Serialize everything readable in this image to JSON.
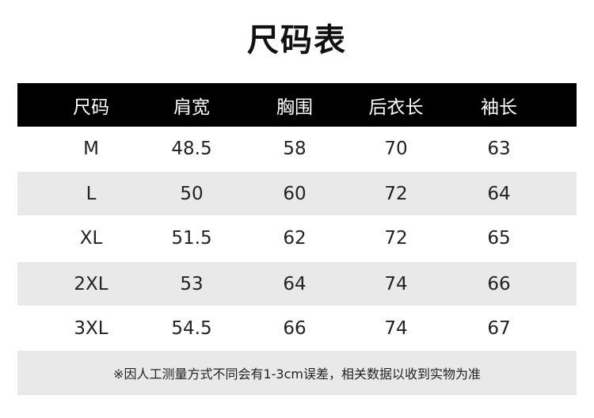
{
  "title": "尺码表",
  "headers": [
    "尺码",
    "肩宽",
    "胸围",
    "后衣长",
    "袖长"
  ],
  "rows": [
    [
      "M",
      "48.5",
      "58",
      "70",
      "63"
    ],
    [
      "L",
      "50",
      "60",
      "72",
      "64"
    ],
    [
      "XL",
      "51.5",
      "62",
      "72",
      "65"
    ],
    [
      "2XL",
      "53",
      "64",
      "74",
      "66"
    ],
    [
      "3XL",
      "54.5",
      "66",
      "74",
      "67"
    ]
  ],
  "note": "※因人工测量方式不同会有1-3cm误差，相关数据以收到实物为准",
  "colors": {
    "header_bg": "#000000",
    "stripe": "#e9e9e9"
  }
}
